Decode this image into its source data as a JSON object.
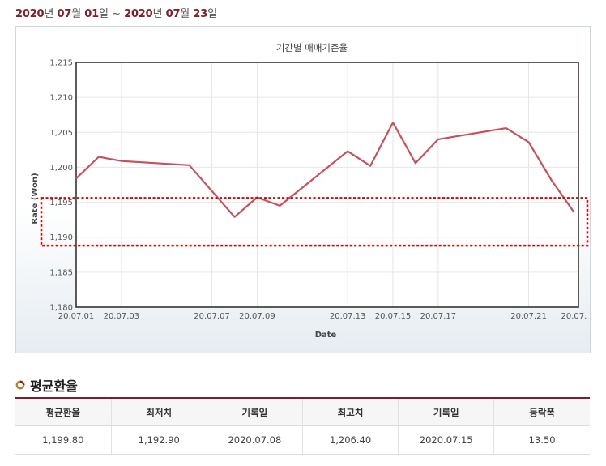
{
  "header": {
    "start_year": "2020",
    "start_year_unit": "년",
    "start_month": "07",
    "start_month_unit": "월",
    "start_day": "01",
    "start_day_unit": "일",
    "separator": "~",
    "end_year": "2020",
    "end_year_unit": "년",
    "end_month": "07",
    "end_month_unit": "월",
    "end_day": "23",
    "end_day_unit": "일"
  },
  "section": {
    "title": "평균환율"
  },
  "table": {
    "headers": [
      "평균환율",
      "최저치",
      "기록일",
      "최고치",
      "기록일",
      "등락폭"
    ],
    "row": [
      "1,199.80",
      "1,192.90",
      "2020.07.08",
      "1,206.40",
      "2020.07.15",
      "13.50"
    ]
  },
  "colors": {
    "accent": "#7a1f2b",
    "line": "#c8505e",
    "highlight_box": "#e00000"
  },
  "chart_data": {
    "type": "line",
    "title": "기간별 매매기준율",
    "xlabel": "Date",
    "ylabel": "Rate (Won)",
    "ylim": [
      1180,
      1215
    ],
    "yticks": [
      "1,180",
      "1,185",
      "1,190",
      "1,195",
      "1,200",
      "1,205",
      "1,210",
      "1,215"
    ],
    "xticks": [
      "20.07.01",
      "20.07.03",
      "20.07.07",
      "20.07.09",
      "20.07.13",
      "20.07.15",
      "20.07.17",
      "20.07.21",
      "20.07."
    ],
    "grid": true,
    "x": [
      "2020.07.01",
      "2020.07.02",
      "2020.07.03",
      "2020.07.06",
      "2020.07.07",
      "2020.07.08",
      "2020.07.09",
      "2020.07.10",
      "2020.07.13",
      "2020.07.14",
      "2020.07.15",
      "2020.07.16",
      "2020.07.17",
      "2020.07.20",
      "2020.07.21",
      "2020.07.22",
      "2020.07.23"
    ],
    "series": [
      {
        "values": [
          1198.4,
          1201.5,
          1200.9,
          1200.3,
          1196.6,
          1192.9,
          1195.7,
          1194.5,
          1202.3,
          1200.2,
          1206.4,
          1200.6,
          1204.0,
          1205.6,
          1203.6,
          1198.2,
          1193.6
        ]
      }
    ],
    "highlight_range": [
      1188.8,
      1195.6
    ]
  }
}
